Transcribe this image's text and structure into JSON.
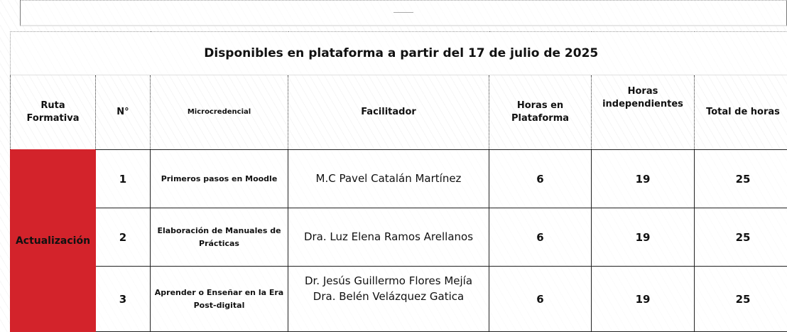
{
  "title": "Disponibles en plataforma a partir del 17 de julio de 2025",
  "headers": [
    "Ruta Formativa",
    "N°",
    "Microcredencial",
    "Facilitador",
    "Horas en Plataforma",
    "Horas independientes",
    "Total de horas"
  ],
  "ruta": "Actualización",
  "ruta_color": "#d3232b",
  "rows": [
    {
      "n": "1",
      "microcredencial": "Primeros pasos en Moodle",
      "facilitador": [
        "M.C Pavel Catalán Martínez"
      ],
      "horas_plataforma": "6",
      "horas_independientes": "19",
      "total": "25"
    },
    {
      "n": "2",
      "microcredencial": "Elaboración de Manuales de Prácticas",
      "facilitador": [
        "Dra. Luz Elena Ramos Arellanos"
      ],
      "horas_plataforma": "6",
      "horas_independientes": "19",
      "total": "25"
    },
    {
      "n": "3",
      "microcredencial": "Aprender o Enseñar en la Era Post-digital",
      "facilitador": [
        "Dr. Jesús Guillermo Flores Mejía",
        "Dra. Belén Velázquez Gatica"
      ],
      "horas_plataforma": "6",
      "horas_independientes": "19",
      "total": "25"
    }
  ]
}
